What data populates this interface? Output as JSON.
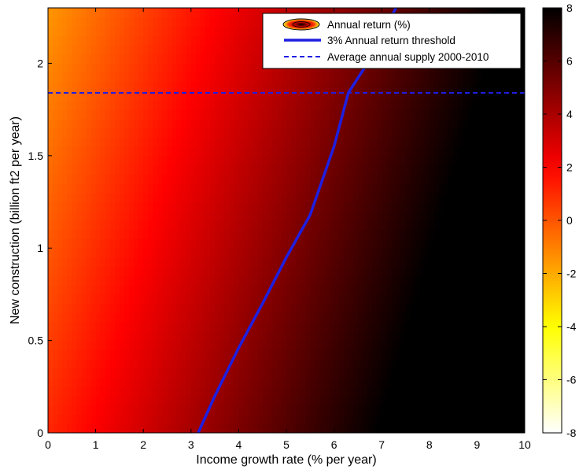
{
  "chart_data": {
    "type": "heatmap",
    "title": "",
    "xlabel": "Income growth rate (% per year)",
    "ylabel": "New construction (billion ft2 per year)",
    "xlim": [
      0,
      10
    ],
    "ylim": [
      0,
      2.3
    ],
    "xticks": [
      0,
      1,
      2,
      3,
      4,
      5,
      6,
      7,
      8,
      9,
      10
    ],
    "xtick_labels": [
      "0",
      "1",
      "2",
      "3",
      "4",
      "5",
      "6",
      "7",
      "8",
      "9",
      "10"
    ],
    "yticks": [
      0,
      0.5,
      1,
      1.5,
      2
    ],
    "ytick_labels": [
      "0",
      "0.5",
      "1",
      "1.5",
      "2"
    ],
    "colorbar": {
      "range": [
        -8,
        8
      ],
      "ticks": [
        -8,
        -6,
        -4,
        -2,
        0,
        2,
        4,
        6,
        8
      ],
      "tick_labels": [
        "-8",
        "-6",
        "-4",
        "-2",
        "0",
        "2",
        "4",
        "6",
        "8"
      ],
      "colormap": "hot (reversed): white at low, yellow, orange, red, black at high"
    },
    "surface": {
      "quantity": "Annual return (%)",
      "approx_model": "return ≈ 1.1 + 1.0 × income_growth − 1.15 × new_construction (clipped to colorbar range)",
      "samples": [
        {
          "x": 0,
          "y": 2.3,
          "z": -3.7
        },
        {
          "x": 0,
          "y": 0,
          "z": -1.5
        },
        {
          "x": 3.1,
          "y": 0,
          "z": 3
        },
        {
          "x": 7.3,
          "y": 2.3,
          "z": 3
        },
        {
          "x": 10,
          "y": 0,
          "z": 8
        }
      ]
    },
    "series": [
      {
        "name": "3% Annual return threshold",
        "type": "line",
        "color": "#1f1fe0",
        "style": "solid",
        "x": [
          3.15,
          3.5,
          4.0,
          4.5,
          5.0,
          5.5,
          6.0,
          6.3,
          6.7,
          7.0,
          7.3
        ],
        "y": [
          0.0,
          0.2,
          0.46,
          0.7,
          0.95,
          1.18,
          1.55,
          1.84,
          2.0,
          2.15,
          2.3
        ]
      },
      {
        "name": "Average annual supply 2000-2010",
        "type": "line",
        "color": "#1f1fe0",
        "style": "dashed",
        "x": [
          0,
          10
        ],
        "y": [
          1.84,
          1.84
        ]
      }
    ],
    "legend": {
      "placement": "top-right",
      "entries": [
        {
          "label": "Annual return (%)",
          "marker": "contour"
        },
        {
          "label": "3% Annual return threshold",
          "marker": "solid-line"
        },
        {
          "label": "Average annual supply 2000-2010",
          "marker": "dashed-line"
        }
      ]
    },
    "grid": false
  }
}
